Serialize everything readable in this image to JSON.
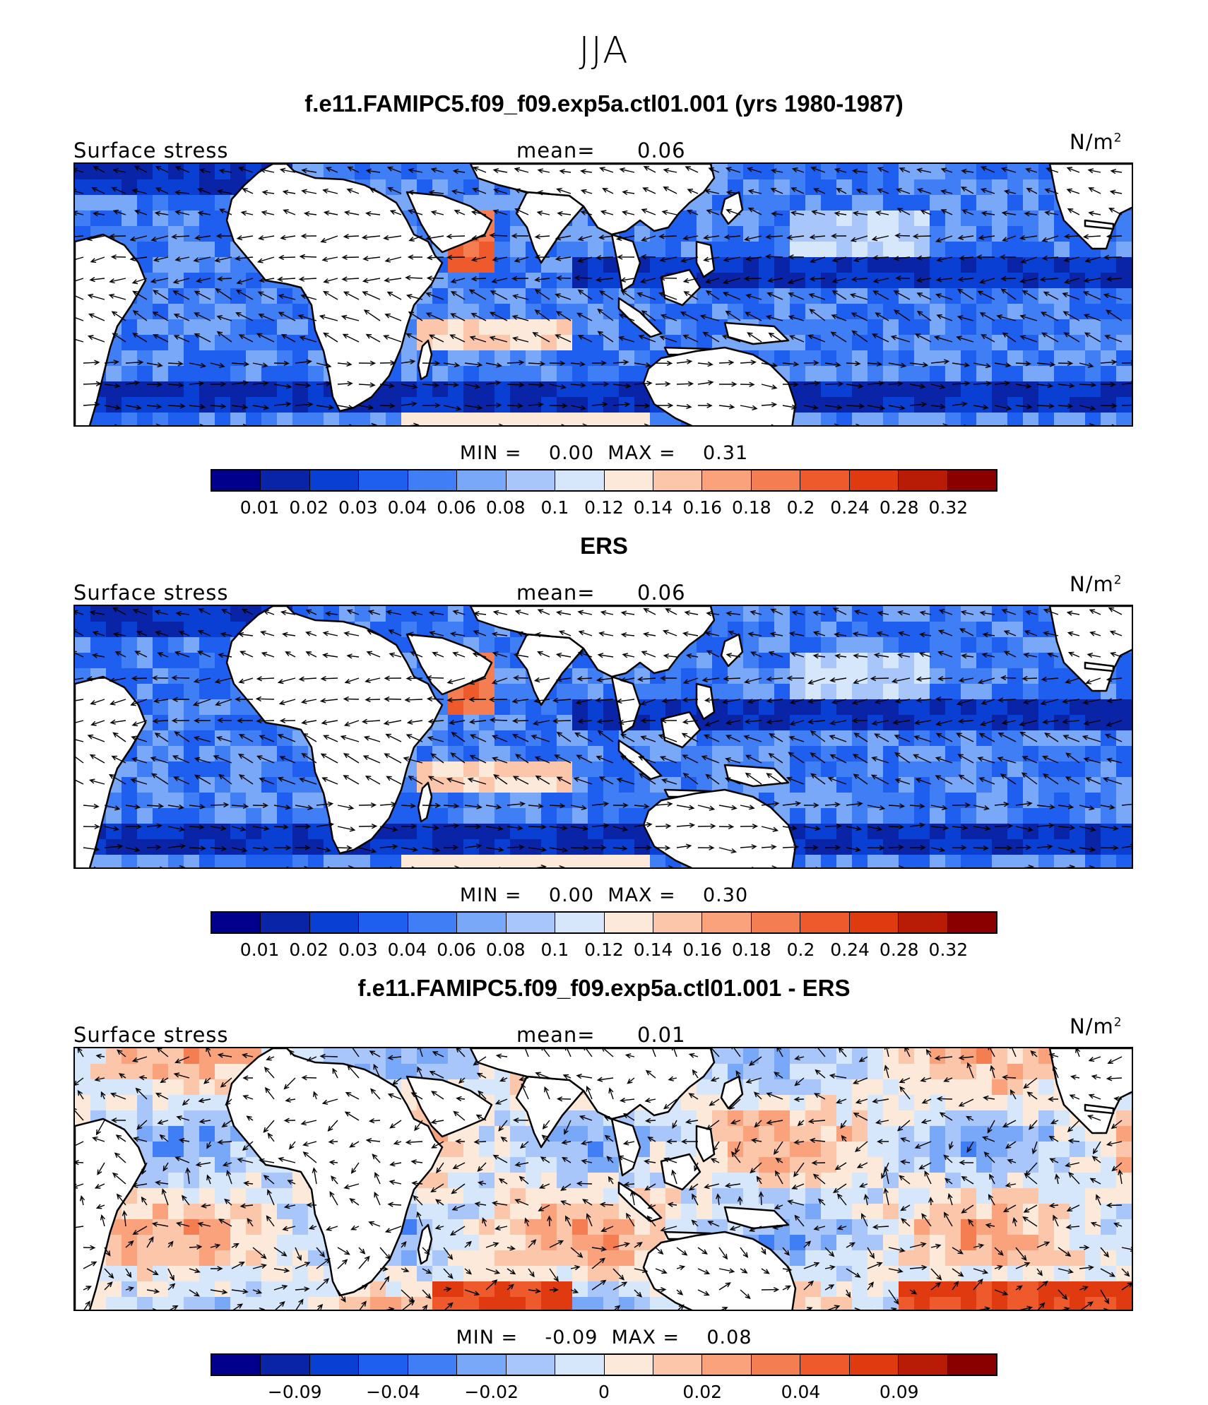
{
  "figure": {
    "season": "JJA"
  },
  "panels": [
    {
      "id": "model",
      "title": "f.e11.FAMIPC5.f09_f09.exp5a.ctl01.001 (yrs 1980-1987)",
      "variable": "Surface stress",
      "mean_label": "mean=",
      "mean_value": "0.06",
      "units_base": "N/m",
      "units_exp": "2",
      "min_label": "MIN =",
      "min_value": "0.00",
      "max_label": "MAX =",
      "max_value": "0.31",
      "colorbar": {
        "colors": [
          "#00008c",
          "#0a24a8",
          "#0a3fd4",
          "#1f5ff0",
          "#3f7ef5",
          "#7aa8f8",
          "#a9c6fb",
          "#d6e6fb",
          "#fde9da",
          "#fbc6aa",
          "#f9a27c",
          "#f47d52",
          "#ee5a2c",
          "#df3a10",
          "#b81c07",
          "#8a0000"
        ],
        "ticks": [
          "0.01",
          "0.02",
          "0.03",
          "0.04",
          "0.06",
          "0.08",
          "0.1",
          "0.12",
          "0.14",
          "0.16",
          "0.18",
          "0.2",
          "0.24",
          "0.28",
          "0.32"
        ]
      }
    },
    {
      "id": "obs",
      "title": "ERS",
      "variable": "Surface stress",
      "mean_label": "mean=",
      "mean_value": "0.06",
      "units_base": "N/m",
      "units_exp": "2",
      "min_label": "MIN =",
      "min_value": "0.00",
      "max_label": "MAX =",
      "max_value": "0.30",
      "colorbar": {
        "colors": [
          "#00008c",
          "#0a24a8",
          "#0a3fd4",
          "#1f5ff0",
          "#3f7ef5",
          "#7aa8f8",
          "#a9c6fb",
          "#d6e6fb",
          "#fde9da",
          "#fbc6aa",
          "#f9a27c",
          "#f47d52",
          "#ee5a2c",
          "#df3a10",
          "#b81c07",
          "#8a0000"
        ],
        "ticks": [
          "0.01",
          "0.02",
          "0.03",
          "0.04",
          "0.06",
          "0.08",
          "0.1",
          "0.12",
          "0.14",
          "0.16",
          "0.18",
          "0.2",
          "0.24",
          "0.28",
          "0.32"
        ]
      }
    },
    {
      "id": "diff",
      "title": "f.e11.FAMIPC5.f09_f09.exp5a.ctl01.001 - ERS",
      "variable": "Surface stress",
      "mean_label": "mean=",
      "mean_value": "0.01",
      "units_base": "N/m",
      "units_exp": "2",
      "min_label": "MIN =",
      "min_value": "-0.09",
      "max_label": "MAX =",
      "max_value": "0.08",
      "colorbar": {
        "colors": [
          "#00008c",
          "#0a24a8",
          "#0a3fd4",
          "#1f5ff0",
          "#3f7ef5",
          "#7aa8f8",
          "#a9c6fb",
          "#d6e6fb",
          "#fde9da",
          "#fbc6aa",
          "#f9a27c",
          "#f47d52",
          "#ee5a2c",
          "#df3a10",
          "#b81c07",
          "#8a0000"
        ],
        "ticks": [
          "−0.09",
          "−0.04",
          "−0.02",
          "0",
          "0.02",
          "0.04",
          "0.09"
        ]
      }
    }
  ]
}
